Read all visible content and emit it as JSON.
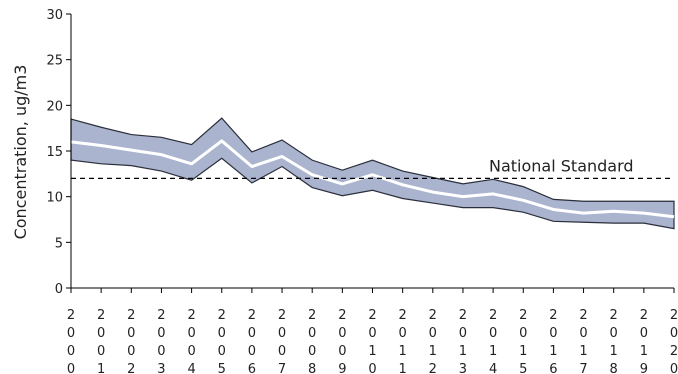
{
  "chart_data": {
    "type": "area",
    "x": [
      "2000",
      "2001",
      "2002",
      "2003",
      "2004",
      "2005",
      "2006",
      "2007",
      "2008",
      "2009",
      "2010",
      "2011",
      "2012",
      "2013",
      "2014",
      "2015",
      "2016",
      "2017",
      "2018",
      "2019",
      "2020"
    ],
    "series": [
      {
        "role": "upper-bound",
        "values": [
          18.5,
          17.6,
          16.8,
          16.5,
          15.7,
          18.6,
          14.9,
          16.2,
          14.0,
          12.9,
          14.0,
          12.8,
          12.1,
          11.4,
          11.9,
          11.1,
          9.7,
          9.5,
          9.5,
          9.5,
          9.5
        ]
      },
      {
        "role": "mean",
        "values": [
          16.0,
          15.6,
          15.1,
          14.6,
          13.6,
          16.1,
          13.3,
          14.4,
          12.4,
          11.4,
          12.4,
          11.3,
          10.5,
          10.0,
          10.3,
          9.6,
          8.6,
          8.2,
          8.4,
          8.2,
          7.8
        ]
      },
      {
        "role": "lower-bound",
        "values": [
          14.0,
          13.6,
          13.4,
          12.8,
          11.8,
          14.2,
          11.5,
          13.3,
          11.0,
          10.1,
          10.7,
          9.8,
          9.3,
          8.8,
          8.8,
          8.3,
          7.3,
          7.2,
          7.1,
          7.1,
          6.5
        ]
      }
    ],
    "reference_line": {
      "value": 12,
      "label": "National Standard",
      "style": "dashed"
    },
    "ylabel": "Concentration, ug/m3",
    "xlabel": "",
    "ylim": [
      0,
      30
    ],
    "yticks": [
      0,
      5,
      10,
      15,
      20,
      25,
      30
    ],
    "grid": false,
    "colors": {
      "band": "#aab4cf",
      "band_edge": "#2a2e3a",
      "mean_line": "#ffffff",
      "reference": "#000000"
    }
  }
}
